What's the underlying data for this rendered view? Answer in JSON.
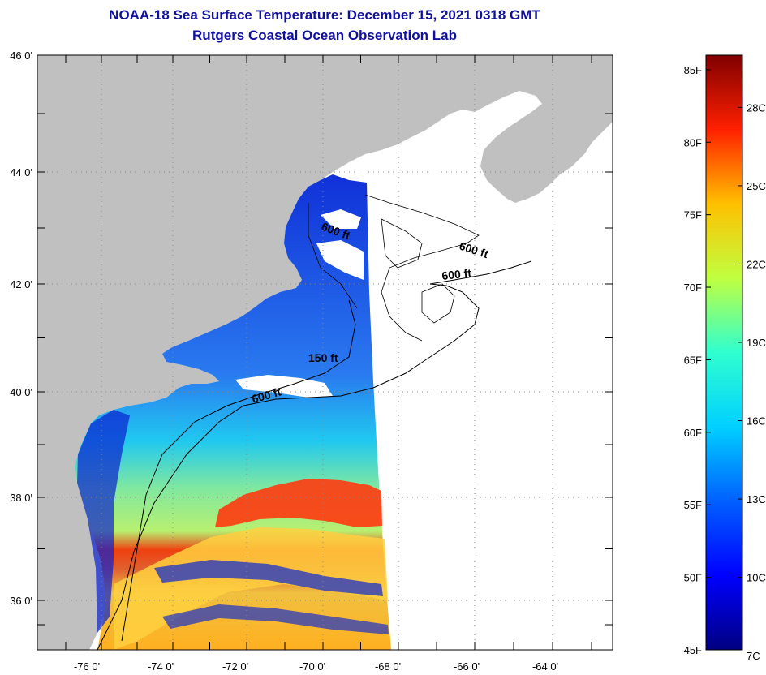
{
  "title": "NOAA-18 Sea Surface Temperature:  December 15, 2021 0318 GMT",
  "subtitle": "Rutgers Coastal Ocean Observation Lab",
  "lat_labels": [
    {
      "deg": 46,
      "text": "46 0'"
    },
    {
      "deg": 44,
      "text": "44 0'"
    },
    {
      "deg": 42,
      "text": "42 0'"
    },
    {
      "deg": 40,
      "text": "40 0'"
    },
    {
      "deg": 38,
      "text": "38 0'"
    },
    {
      "deg": 36,
      "text": "36 0'"
    }
  ],
  "lon_labels": [
    {
      "deg": -76,
      "text": "-76 0'"
    },
    {
      "deg": -74,
      "text": "-74 0'"
    },
    {
      "deg": -72,
      "text": "-72 0'"
    },
    {
      "deg": -70,
      "text": "-70 0'"
    },
    {
      "deg": -68,
      "text": "-68 0'"
    },
    {
      "deg": -66,
      "text": "-66 0'"
    },
    {
      "deg": -64,
      "text": "-64 0'"
    }
  ],
  "depth_labels": [
    "600 ft",
    "600 ft",
    "600 ft",
    "150 ft",
    "600 ft"
  ],
  "colorbar": {
    "fahrenheit": [
      {
        "value": 85,
        "text": "85F"
      },
      {
        "value": 80,
        "text": "80F"
      },
      {
        "value": 75,
        "text": "75F"
      },
      {
        "value": 70,
        "text": "70F"
      },
      {
        "value": 65,
        "text": "65F"
      },
      {
        "value": 60,
        "text": "60F"
      },
      {
        "value": 55,
        "text": "55F"
      },
      {
        "value": 50,
        "text": "50F"
      },
      {
        "value": 45,
        "text": "45F"
      }
    ],
    "celsius": [
      {
        "value": 28,
        "text": "28C"
      },
      {
        "value": 25,
        "text": "25C"
      },
      {
        "value": 22,
        "text": "22C"
      },
      {
        "value": 19,
        "text": "19C"
      },
      {
        "value": 16,
        "text": "16C"
      },
      {
        "value": 13,
        "text": "13C"
      },
      {
        "value": 10,
        "text": "10C"
      },
      {
        "value": 7,
        "text": "7C"
      }
    ]
  },
  "colors": {
    "title": "#1010a0",
    "land": "#c0c0c0",
    "ramp": [
      "#000080",
      "#0000ff",
      "#0080ff",
      "#00ffff",
      "#80ff80",
      "#ffff00",
      "#ff8000",
      "#ff0000",
      "#800000"
    ]
  }
}
